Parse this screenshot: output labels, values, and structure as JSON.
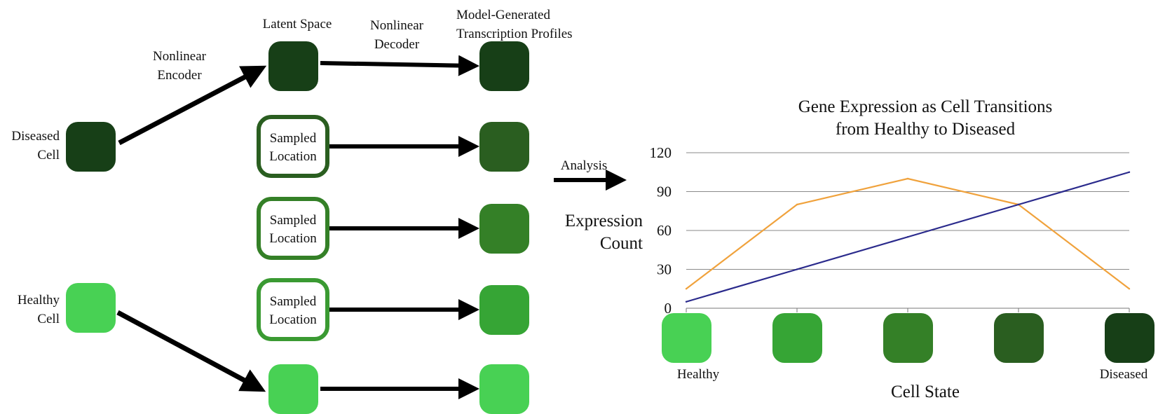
{
  "diagram": {
    "inputs": {
      "diseased": {
        "label_line1": "Diseased",
        "label_line2": "Cell",
        "color": "#173f17"
      },
      "healthy": {
        "label_line1": "Healthy",
        "label_line2": "Cell",
        "color": "#48d154"
      }
    },
    "encoder": {
      "line1": "Nonlinear",
      "line2": "Encoder"
    },
    "decoder": {
      "line1": "Nonlinear",
      "line2": "Decoder"
    },
    "latent_space_label": "Latent Space",
    "output_label_line1": "Model-Generated",
    "output_label_line2": "Transcription Profiles",
    "sampled_line1": "Sampled",
    "sampled_line2": "Location",
    "latent_nodes": [
      {
        "kind": "filled",
        "color": "#173f17"
      },
      {
        "kind": "sampled",
        "color": "#2a5e20"
      },
      {
        "kind": "sampled",
        "color": "#348027"
      },
      {
        "kind": "sampled",
        "color": "#3a9a32"
      },
      {
        "kind": "filled",
        "color": "#48d154"
      }
    ],
    "output_colors": [
      "#173f17",
      "#2a5e20",
      "#348027",
      "#36a535",
      "#48d154"
    ],
    "analysis_label": "Analysis"
  },
  "chart": {
    "title_line1": "Gene Expression as Cell Transitions",
    "title_line2": "from Healthy to Diseased",
    "ylabel_line1": "Expression",
    "ylabel_line2": "Count",
    "xlabel": "Cell State",
    "x_left_label": "Healthy",
    "x_right_label": "Diseased",
    "state_colors": [
      "#48d154",
      "#36a535",
      "#348027",
      "#2a5e20",
      "#173f17"
    ]
  },
  "chart_data": {
    "type": "line",
    "categories": [
      "Healthy",
      "",
      "",
      "",
      "Diseased"
    ],
    "ylim": [
      0,
      120
    ],
    "yticks": [
      0,
      30,
      60,
      90,
      120
    ],
    "grid": true,
    "series": [
      {
        "values": [
          15,
          80,
          100,
          80,
          15
        ],
        "color": "#f0a23c"
      },
      {
        "values": [
          5,
          30,
          55,
          80,
          105
        ],
        "color": "#2a2a8c"
      }
    ]
  }
}
